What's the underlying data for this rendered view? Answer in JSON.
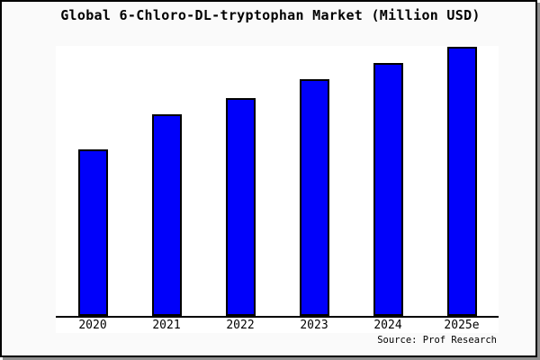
{
  "chart_data": {
    "type": "bar",
    "title": "Global 6-Chloro-DL-tryptophan Market (Million USD)",
    "categories": [
      "2020",
      "2021",
      "2022",
      "2023",
      "2024",
      "2025e"
    ],
    "values": [
      62,
      75,
      81,
      88,
      94,
      100
    ],
    "values_note": "relative bar heights estimated from pixels, % of 2025e bar; chart shows no y-axis tick labels",
    "xlabel": "",
    "ylabel": "",
    "ylim": [
      0,
      100
    ],
    "grid": false,
    "legend": false,
    "bar_color": "#0000fa",
    "bar_border_color": "#000000",
    "source": "Source: Prof Research"
  },
  "colors": {
    "figure_background": "#fafafa",
    "plot_background": "#ffffff",
    "frame_border": "#000000",
    "axis": "#000000",
    "shadow": "#8f8f8f",
    "text": "#000000"
  }
}
